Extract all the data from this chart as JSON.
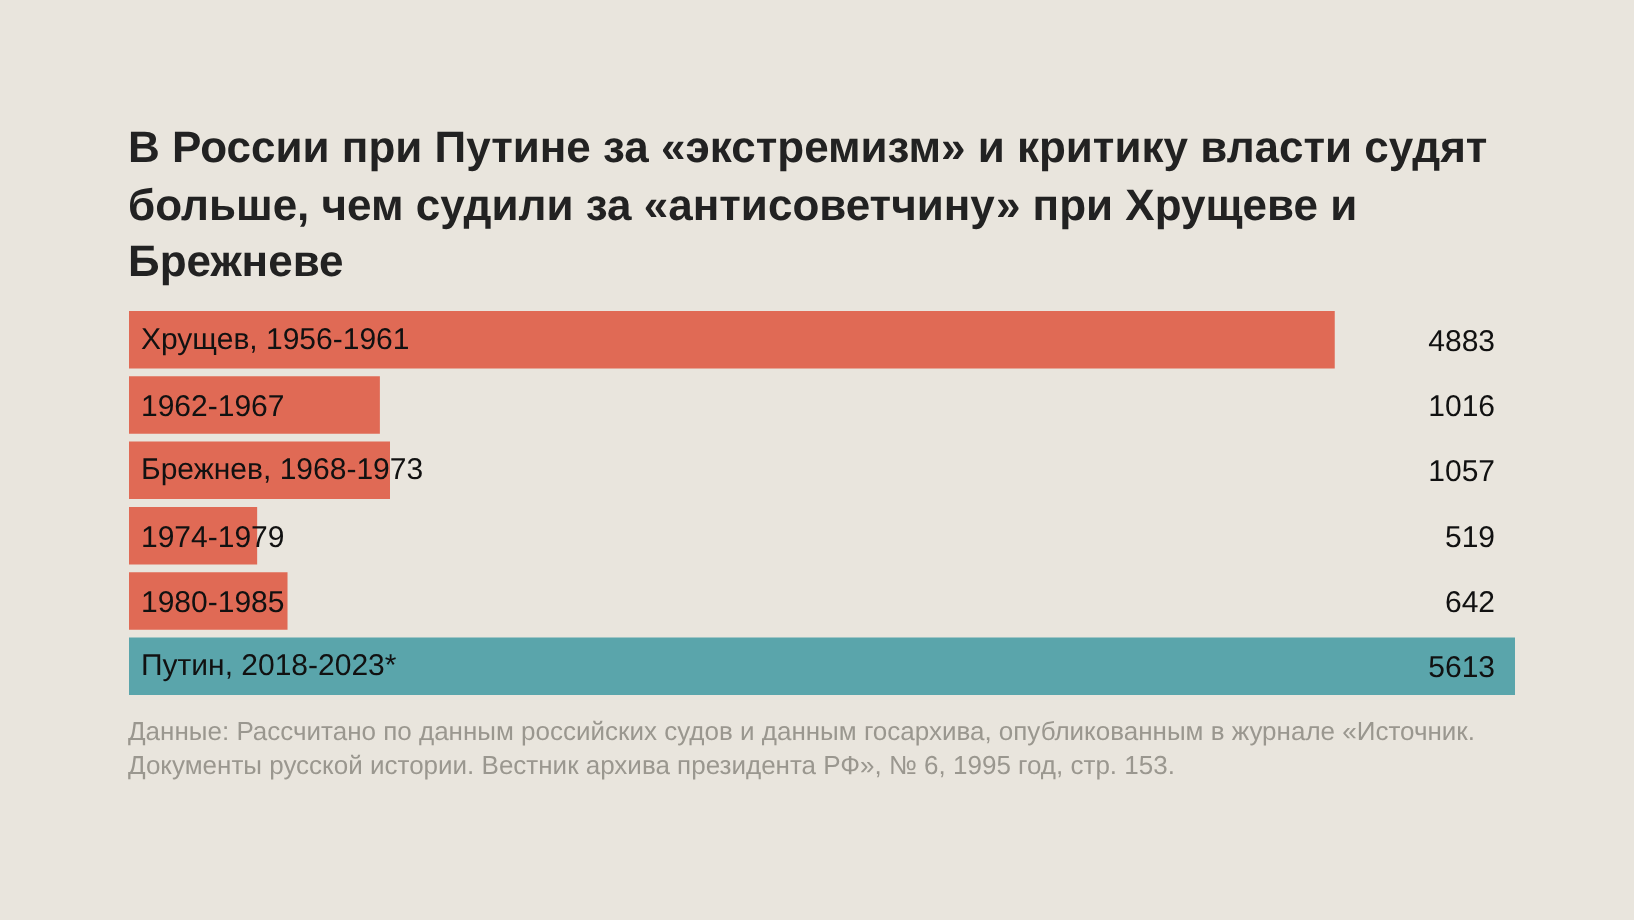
{
  "chart_data": {
    "type": "bar",
    "orientation": "horizontal",
    "title": "В России при Путине за «экстремизм» и критику власти судят больше, чем судили за «антисоветчину» при Хрущеве и Брежневе",
    "categories": [
      "Хрущев, 1956-1961",
      "1962-1967",
      "Брежнев, 1968-1973",
      "1974-1979",
      "1980-1985",
      "Путин, 2018-2023*"
    ],
    "values": [
      4883,
      1016,
      1057,
      519,
      642,
      5613
    ],
    "colors": [
      "#e06a55",
      "#e06a55",
      "#e06a55",
      "#e06a55",
      "#e06a55",
      "#5aa5ab"
    ],
    "data_labels": true,
    "annotations": [
      "Данные: Рассчитано по данным российских судов и данным госархива, опубликованным в журнале «Источник. Документы русской истории. Вестник архива президента РФ», № 6, 1995 год, стр. 153."
    ]
  }
}
